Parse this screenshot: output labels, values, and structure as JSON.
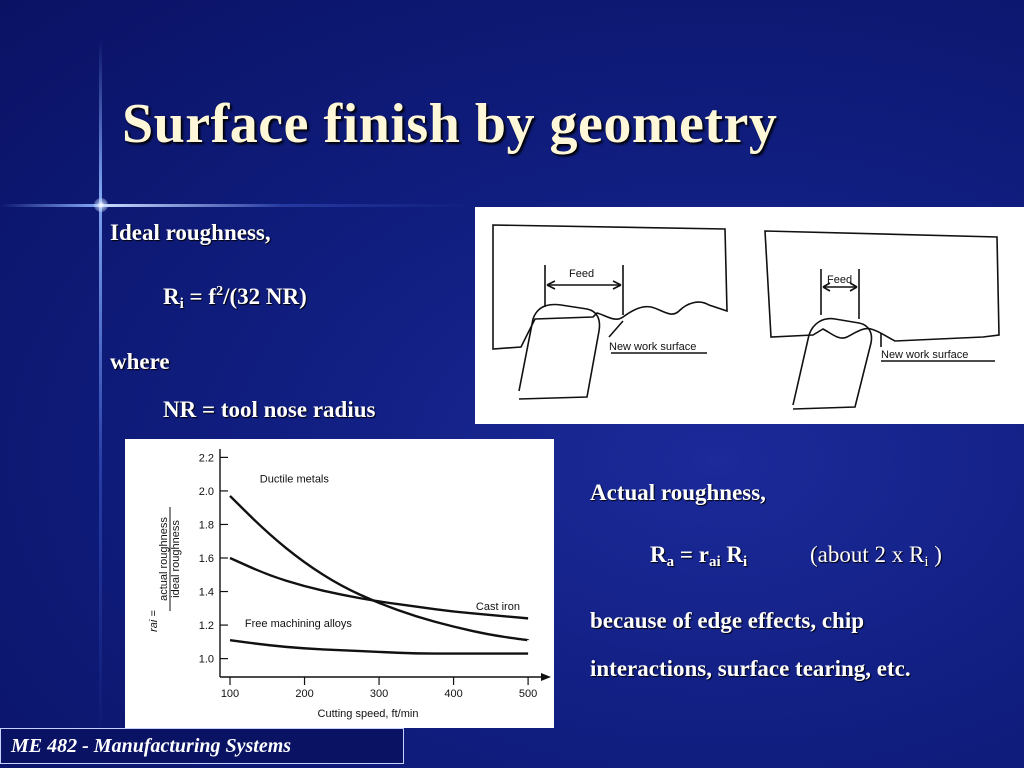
{
  "slide": {
    "title": "Surface finish by geometry",
    "footer": "ME 482 - Manufacturing Systems"
  },
  "ideal": {
    "heading": "Ideal roughness,",
    "formula": {
      "lhs": "R",
      "lhs_sub": "i",
      "mid": " = f",
      "exp": "2",
      "rhs": "/(32 NR)"
    },
    "where": "where",
    "definition": "NR = tool nose radius"
  },
  "actual": {
    "heading": "Actual roughness,",
    "formula": {
      "r": "R",
      "r_sub": "a",
      "eq": " =  r",
      "r_ai_sub": "ai",
      "ri": " R",
      "ri_sub": "i"
    },
    "approx": {
      "prefix": "(about 2 x R",
      "sub": "i",
      "suffix": " )"
    },
    "line1": "because of edge effects, chip",
    "line2": "interactions, surface tearing, etc."
  },
  "diagram": {
    "feed_label": "Feed",
    "surface_label": "New work surface"
  },
  "chart_data": {
    "type": "line",
    "ylabel_num": "actual roughness",
    "ylabel_den": "ideal roughness",
    "ylabel_symbol": "r",
    "ylabel_symbol_sub": "ai",
    "ylabel_eq": "=",
    "xlabel": "Cutting speed, ft/min",
    "xticks": [
      100,
      200,
      300,
      400,
      500
    ],
    "yticks": [
      1.0,
      1.2,
      1.4,
      1.6,
      1.8,
      2.0,
      2.2
    ],
    "xlim": [
      100,
      520
    ],
    "ylim": [
      0.95,
      2.25
    ],
    "series": [
      {
        "name": "Ductile metals",
        "x": [
          100,
          150,
          200,
          250,
          300,
          350,
          400,
          450,
          500
        ],
        "y": [
          1.97,
          1.75,
          1.57,
          1.43,
          1.33,
          1.25,
          1.19,
          1.14,
          1.11
        ]
      },
      {
        "name": "Cast iron",
        "x": [
          100,
          150,
          200,
          250,
          300,
          350,
          400,
          450,
          500
        ],
        "y": [
          1.6,
          1.5,
          1.43,
          1.38,
          1.34,
          1.31,
          1.28,
          1.26,
          1.24
        ]
      },
      {
        "name": "Free machining alloys",
        "x": [
          100,
          150,
          200,
          250,
          300,
          350,
          400,
          450,
          500
        ],
        "y": [
          1.11,
          1.08,
          1.06,
          1.05,
          1.04,
          1.03,
          1.03,
          1.03,
          1.03
        ]
      }
    ]
  },
  "colors": {
    "background": "#101e80",
    "title": "#fff8d8",
    "text": "#ffffff"
  }
}
